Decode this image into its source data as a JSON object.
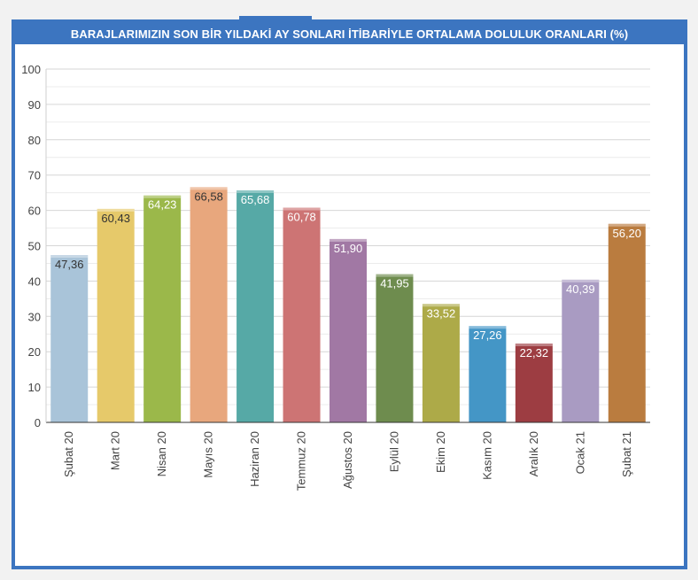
{
  "title": "BARAJLARIMIZIN SON BİR YILDAKİ AY SONLARI İTİBARİYLE ORTALAMA DOLULUK ORANLARI (%)",
  "chart_data": {
    "type": "bar",
    "title": "BARAJLARIMIZIN SON BİR YILDAKİ AY SONLARI İTİBARİYLE ORTALAMA DOLULUK ORANLARI (%)",
    "xlabel": "",
    "ylabel": "",
    "ylim": [
      0,
      100
    ],
    "yticks": [
      0,
      10,
      20,
      30,
      40,
      50,
      60,
      70,
      80,
      90,
      100
    ],
    "grid": true,
    "categories": [
      "Şubat 20",
      "Mart 20",
      "Nisan 20",
      "Mayıs 20",
      "Haziran 20",
      "Temmuz 20",
      "Ağustos 20",
      "Eylül 20",
      "Ekim 20",
      "Kasım 20",
      "Aralık 20",
      "Ocak 21",
      "Şubat 21"
    ],
    "values": [
      47.36,
      60.43,
      64.23,
      66.58,
      65.68,
      60.78,
      51.9,
      41.95,
      33.52,
      27.26,
      22.32,
      40.39,
      56.2
    ],
    "value_labels": [
      "47,36",
      "60,43",
      "64,23",
      "66,58",
      "65,68",
      "60,78",
      "51,90",
      "41,95",
      "33,52",
      "27,26",
      "22,32",
      "40,39",
      "56,20"
    ],
    "colors": [
      "#a9c4d9",
      "#e6c96a",
      "#9bb84a",
      "#e8a77d",
      "#56a9a6",
      "#cd7474",
      "#a178a4",
      "#6e8c4e",
      "#adaa48",
      "#4496c6",
      "#9d3d42",
      "#a99bc2",
      "#ba7c3f"
    ],
    "label_colors": [
      "#333333",
      "#333333",
      "#ffffff",
      "#333333",
      "#ffffff",
      "#ffffff",
      "#ffffff",
      "#ffffff",
      "#ffffff",
      "#ffffff",
      "#ffffff",
      "#ffffff",
      "#ffffff"
    ]
  }
}
